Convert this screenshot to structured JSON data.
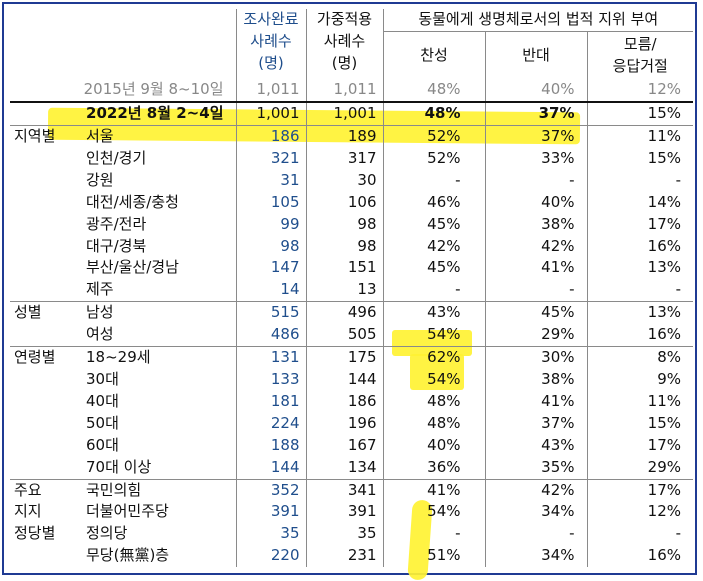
{
  "header": {
    "col_complete": "조사완료",
    "col_weighted": "가중적용",
    "col_question": "동물에게 생명체로서의 법적 지위 부여",
    "col_complete_sub": [
      "사례수",
      "(명)"
    ],
    "col_weighted_sub": [
      "사례수",
      "(명)"
    ],
    "col_yes": "찬성",
    "col_no": "반대",
    "col_dk": [
      "모름/",
      "응답거절"
    ]
  },
  "rows": [
    {
      "group": "",
      "label": "2015년 9월 8~10일",
      "n1": "1,011",
      "n2": "1,011",
      "yes": "48%",
      "no": "40%",
      "dk": "12%",
      "kind": "y2015"
    },
    {
      "group": "",
      "label": "2022년 8월 2~4일",
      "n1": "1,001",
      "n2": "1,001",
      "yes": "48%",
      "no": "37%",
      "dk": "15%",
      "kind": "y2022"
    },
    {
      "group": "지역별",
      "label": "서울",
      "n1": "186",
      "n2": "189",
      "yes": "52%",
      "no": "37%",
      "dk": "11%",
      "kind": "sep"
    },
    {
      "group": "",
      "label": "인천/경기",
      "n1": "321",
      "n2": "317",
      "yes": "52%",
      "no": "33%",
      "dk": "15%"
    },
    {
      "group": "",
      "label": "강원",
      "n1": "31",
      "n2": "30",
      "yes": "-",
      "no": "-",
      "dk": "-"
    },
    {
      "group": "",
      "label": "대전/세종/충청",
      "n1": "105",
      "n2": "106",
      "yes": "46%",
      "no": "40%",
      "dk": "14%"
    },
    {
      "group": "",
      "label": "광주/전라",
      "n1": "99",
      "n2": "98",
      "yes": "45%",
      "no": "38%",
      "dk": "17%"
    },
    {
      "group": "",
      "label": "대구/경북",
      "n1": "98",
      "n2": "98",
      "yes": "42%",
      "no": "42%",
      "dk": "16%"
    },
    {
      "group": "",
      "label": "부산/울산/경남",
      "n1": "147",
      "n2": "151",
      "yes": "45%",
      "no": "41%",
      "dk": "13%"
    },
    {
      "group": "",
      "label": "제주",
      "n1": "14",
      "n2": "13",
      "yes": "-",
      "no": "-",
      "dk": "-"
    },
    {
      "group": "성별",
      "label": "남성",
      "n1": "515",
      "n2": "496",
      "yes": "43%",
      "no": "45%",
      "dk": "13%",
      "kind": "sep"
    },
    {
      "group": "",
      "label": "여성",
      "n1": "486",
      "n2": "505",
      "yes": "54%",
      "no": "29%",
      "dk": "16%"
    },
    {
      "group": "연령별",
      "label": "18~29세",
      "n1": "131",
      "n2": "175",
      "yes": "62%",
      "no": "30%",
      "dk": "8%",
      "kind": "sep"
    },
    {
      "group": "",
      "label": "30대",
      "n1": "133",
      "n2": "144",
      "yes": "54%",
      "no": "38%",
      "dk": "9%"
    },
    {
      "group": "",
      "label": "40대",
      "n1": "181",
      "n2": "186",
      "yes": "48%",
      "no": "41%",
      "dk": "11%"
    },
    {
      "group": "",
      "label": "50대",
      "n1": "224",
      "n2": "196",
      "yes": "48%",
      "no": "37%",
      "dk": "15%"
    },
    {
      "group": "",
      "label": "60대",
      "n1": "188",
      "n2": "167",
      "yes": "40%",
      "no": "43%",
      "dk": "17%"
    },
    {
      "group": "",
      "label": "70대 이상",
      "n1": "144",
      "n2": "134",
      "yes": "36%",
      "no": "35%",
      "dk": "29%"
    },
    {
      "group": "주요",
      "label": "국민의힘",
      "n1": "352",
      "n2": "341",
      "yes": "41%",
      "no": "42%",
      "dk": "17%",
      "kind": "sep"
    },
    {
      "group": "지지",
      "label": "더불어민주당",
      "n1": "391",
      "n2": "391",
      "yes": "54%",
      "no": "34%",
      "dk": "12%"
    },
    {
      "group": "정당별",
      "label": "정의당",
      "n1": "35",
      "n2": "35",
      "yes": "-",
      "no": "-",
      "dk": "-"
    },
    {
      "group": "",
      "label": "무당(無黨)층",
      "n1": "220",
      "n2": "231",
      "yes": "51%",
      "no": "34%",
      "dk": "16%"
    }
  ],
  "colors": {
    "highlight": "#fff233",
    "frame": "#1f3a93",
    "count": "#1f4e8c"
  }
}
